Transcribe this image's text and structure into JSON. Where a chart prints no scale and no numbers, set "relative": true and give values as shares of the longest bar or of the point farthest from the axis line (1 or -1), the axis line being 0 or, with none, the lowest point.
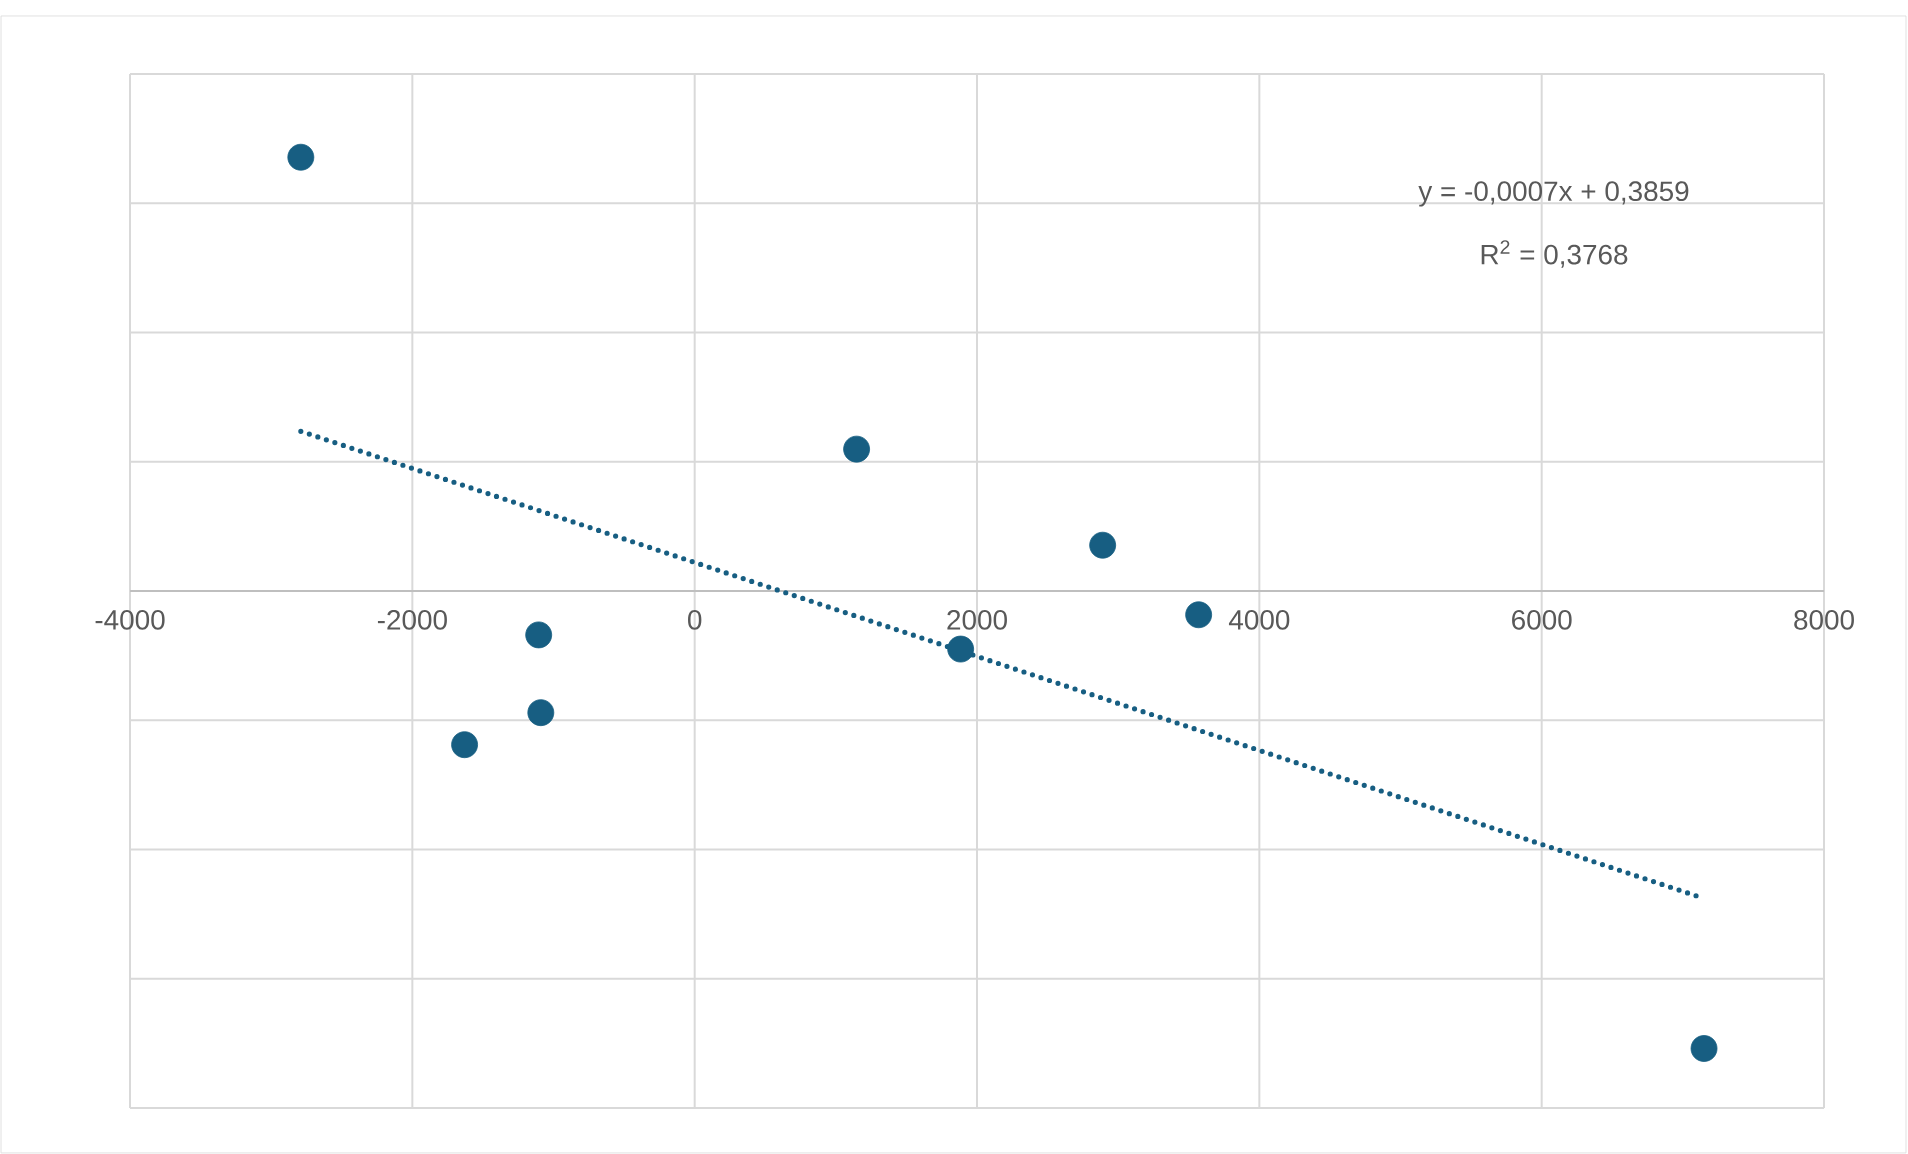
{
  "chart_data": {
    "type": "scatter",
    "relative": true,
    "grid": true,
    "marker": "circle",
    "xlim": [
      -4000,
      8000
    ],
    "xticks": [
      -4000,
      -2000,
      0,
      2000,
      4000,
      6000,
      8000
    ],
    "tick_labels": "x",
    "series": [
      {
        "type": "scatter",
        "color": "#175e82",
        "x": [
          -2790,
          1147,
          2890,
          3570,
          1884,
          -1105,
          -1090,
          -1630,
          7150
        ],
        "values": [
          0.948,
          0.31,
          0.1,
          -0.052,
          -0.127,
          -0.096,
          -0.266,
          -0.336,
          -1
        ]
      },
      {
        "type": "line",
        "color": "#175e82",
        "line_style": "dotted",
        "marker": "none",
        "x": [
          -2790,
          7150
        ],
        "values": [
          0.349,
          -0.672
        ]
      }
    ],
    "annotations": [
      "y = -0,0007x + 0,3859",
      "R$^{2}$ = 0,3768"
    ]
  }
}
